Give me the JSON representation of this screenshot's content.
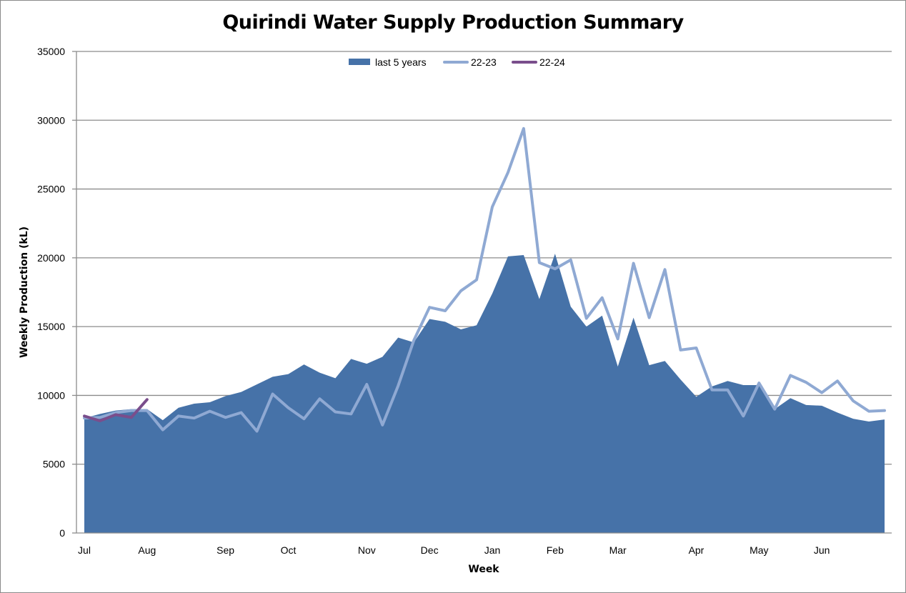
{
  "chart_data": {
    "type": "area",
    "title": "Quirindi Water Supply Production Summary",
    "xlabel": "Week",
    "ylabel": "Weekly Production (kL)",
    "ylim": [
      0,
      35000
    ],
    "yticks": [
      0,
      5000,
      10000,
      15000,
      20000,
      25000,
      30000,
      35000
    ],
    "grid": true,
    "legend": "top-center",
    "week_count": 52,
    "month_labels": [
      {
        "label": "Jul",
        "week": 0
      },
      {
        "label": "Aug",
        "week": 4
      },
      {
        "label": "Sep",
        "week": 9
      },
      {
        "label": "Oct",
        "week": 13
      },
      {
        "label": "Nov",
        "week": 18
      },
      {
        "label": "Dec",
        "week": 22
      },
      {
        "label": "Jan",
        "week": 26
      },
      {
        "label": "Feb",
        "week": 30
      },
      {
        "label": "Mar",
        "week": 34
      },
      {
        "label": "Apr",
        "week": 39
      },
      {
        "label": "May",
        "week": 43
      },
      {
        "label": "Jun",
        "week": 47
      }
    ],
    "series": [
      {
        "name": "last 5 years",
        "style": "area",
        "color": "#4672a8",
        "values": [
          8350,
          8650,
          8900,
          9000,
          9000,
          8200,
          9100,
          9400,
          9500,
          9950,
          10250,
          10800,
          11350,
          11550,
          12250,
          11650,
          11250,
          12650,
          12300,
          12800,
          14200,
          13850,
          15550,
          15350,
          14800,
          15100,
          17400,
          20100,
          20200,
          17000,
          20300,
          16450,
          15000,
          15800,
          12100,
          15650,
          12200,
          12500,
          11150,
          9900,
          10650,
          11050,
          10750,
          10750,
          9000,
          9800,
          9300,
          9250,
          8750,
          8300,
          8100,
          8250
        ]
      },
      {
        "name": "22-23",
        "style": "line",
        "color": "#8fa9d3",
        "values": [
          8350,
          8400,
          8750,
          8900,
          8900,
          7500,
          8500,
          8350,
          8850,
          8400,
          8750,
          7400,
          10100,
          9100,
          8300,
          9750,
          8800,
          8650,
          10800,
          7850,
          10700,
          14000,
          16400,
          16150,
          17600,
          18400,
          23700,
          26200,
          29400,
          19650,
          19200,
          19850,
          15600,
          17100,
          14100,
          19600,
          15650,
          19150,
          13300,
          13450,
          10400,
          10400,
          8500,
          10900,
          9000,
          11450,
          10950,
          10200,
          11050,
          9600,
          8850,
          8900
        ]
      },
      {
        "name": "22-24",
        "style": "line",
        "color": "#7a4e8c",
        "values": [
          8500,
          8150,
          8600,
          8400,
          9700
        ]
      }
    ]
  }
}
